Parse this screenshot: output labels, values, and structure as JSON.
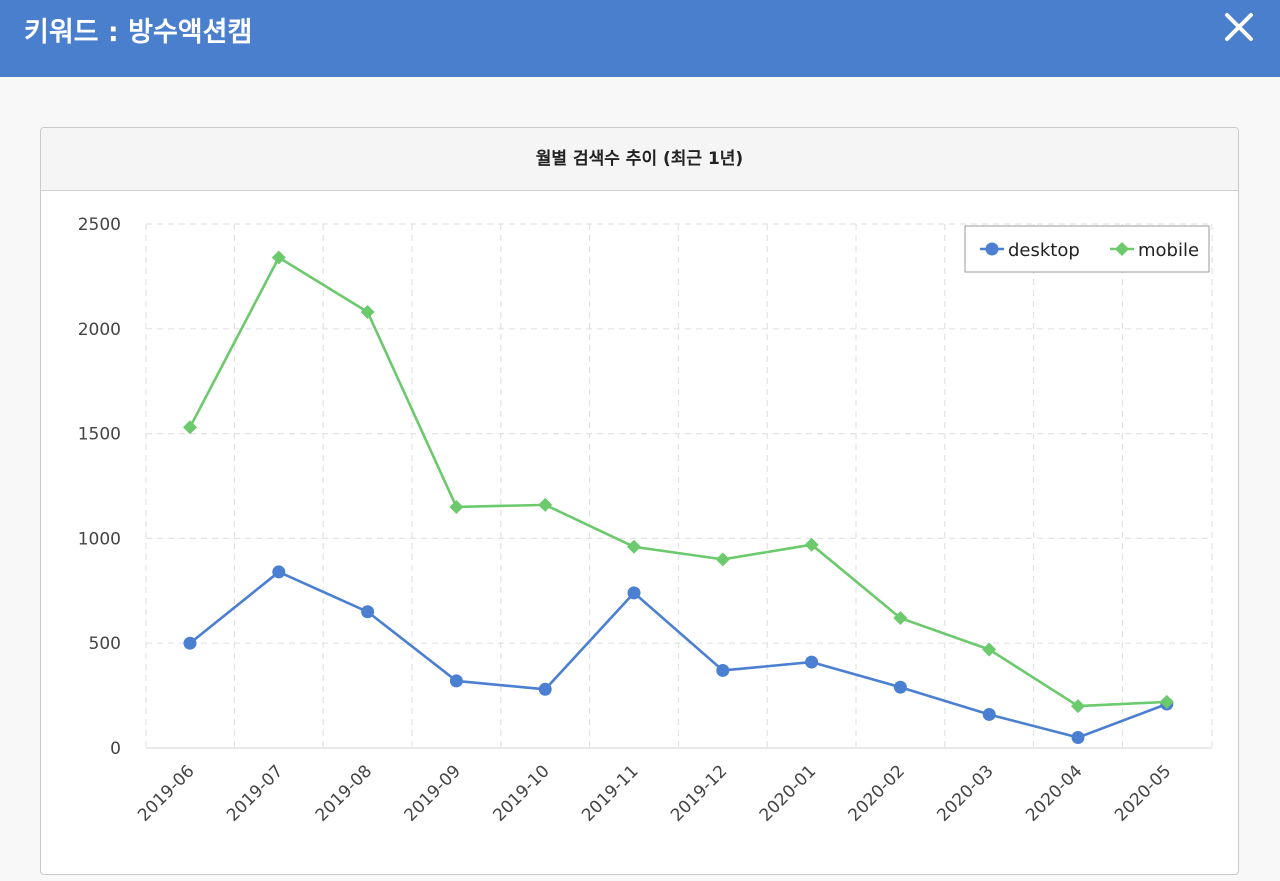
{
  "window": {
    "title": "키워드 : 방수액션캠",
    "close_icon": "close-icon"
  },
  "panel": {
    "title": "월별 검색수 추이 (최근 1년)"
  },
  "chart_data": {
    "type": "line",
    "title": "월별 검색수 추이 (최근 1년)",
    "xlabel": "",
    "ylabel": "",
    "categories": [
      "2019-06",
      "2019-07",
      "2019-08",
      "2019-09",
      "2019-10",
      "2019-11",
      "2019-12",
      "2020-01",
      "2020-02",
      "2020-03",
      "2020-04",
      "2020-05"
    ],
    "ylim": [
      0,
      2500
    ],
    "yticks": [
      "0",
      "500",
      "1000",
      "1500",
      "2000",
      "2500"
    ],
    "grid": true,
    "legend_position": "top-right",
    "series": [
      {
        "name": "desktop",
        "color": "#4a7fd1",
        "marker": "circle",
        "values": [
          500,
          840,
          650,
          320,
          280,
          740,
          370,
          410,
          290,
          160,
          50,
          210
        ]
      },
      {
        "name": "mobile",
        "color": "#6cc96c",
        "marker": "diamond",
        "values": [
          1530,
          2340,
          2080,
          1150,
          1160,
          960,
          900,
          970,
          620,
          470,
          200,
          220
        ]
      }
    ]
  }
}
